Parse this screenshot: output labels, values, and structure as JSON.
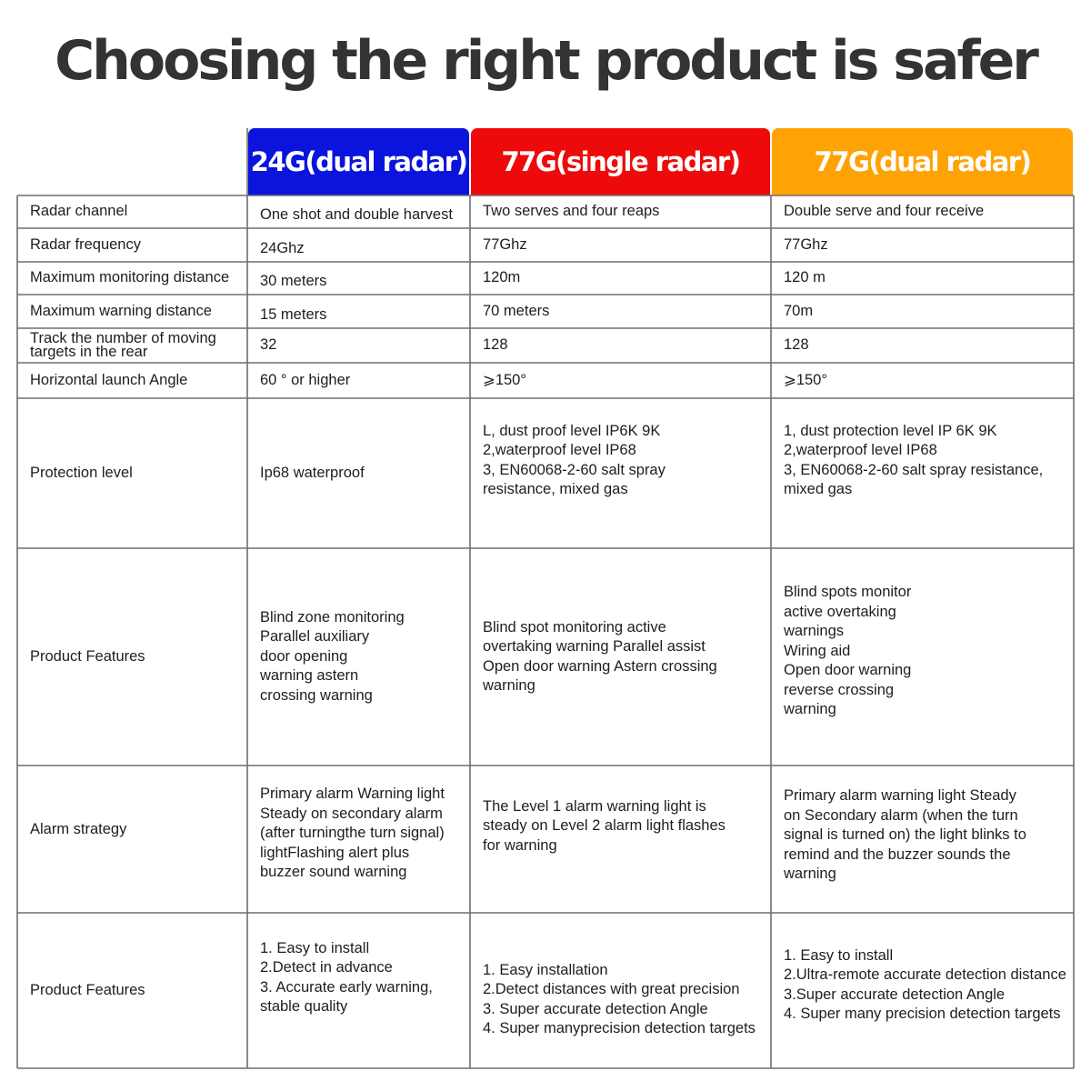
{
  "title": "Choosing the right product is safer",
  "columns": [
    {
      "label": "24G(dual radar)",
      "color": "#0a14dc"
    },
    {
      "label": "77G(single radar)",
      "color": "#ee0a0a"
    },
    {
      "label": "77G(dual radar)",
      "color": "#ffa305"
    }
  ],
  "rows": [
    {
      "label": "Radar channel",
      "values": [
        "One shot and double harvest",
        "Two serves and four reaps",
        "Double serve and four receive"
      ]
    },
    {
      "label": "Radar frequency",
      "values": [
        "24Ghz",
        "77Ghz",
        "77Ghz"
      ]
    },
    {
      "label": "Maximum monitoring distance",
      "values": [
        "30 meters",
        "120m",
        "120 m"
      ]
    },
    {
      "label": "Maximum warning distance",
      "values": [
        "15 meters",
        "70 meters",
        "70m"
      ]
    },
    {
      "label": "Track the number of moving\ntargets in the rear",
      "values": [
        "32",
        "128",
        "128"
      ]
    },
    {
      "label": "Horizontal launch Angle",
      "values": [
        "60 ° or higher",
        "⩾150°",
        "⩾150°"
      ]
    },
    {
      "label": "Protection level",
      "values": [
        "Ip68 waterproof",
        "L, dust proof level IP6K 9K\n2,waterproof level IP68\n3, EN60068-2-60 salt spray\nresistance, mixed gas",
        "1, dust protection level IP 6K 9K\n2,waterproof level IP68\n3, EN60068-2-60 salt spray resistance,\nmixed gas"
      ]
    },
    {
      "label": "Product Features",
      "values": [
        "Blind zone monitoring\nParallel auxiliary\ndoor opening\nwarning astern\ncrossing warning",
        "Blind spot monitoring active\novertaking warning Parallel assist\nOpen door warning Astern crossing\nwarning",
        "Blind spots monitor\nactive overtaking\nwarnings\nWiring aid\nOpen door warning\nreverse crossing\nwarning"
      ]
    },
    {
      "label": "Alarm strategy",
      "values": [
        "Primary alarm Warning light\n Steady on secondary alarm\n(after turningthe turn signal)\n lightFlashing alert plus\nbuzzer  sound warning",
        "The Level 1 alarm warning light is\n steady on Level 2 alarm light flashes\nfor warning",
        "Primary alarm warning light Steady\non Secondary alarm (when the turn\nsignal is turned on) the light blinks to\nremind and the buzzer sounds the\nwarning"
      ]
    },
    {
      "label": "Product Features",
      "values": [
        "1. Easy to install\n2.Detect in advance\n3. Accurate early warning,\nstable quality",
        "1. Easy installation\n2.Detect distances with great precision\n3. Super accurate detection Angle\n4. Super manyprecision detection targets",
        "1. Easy to install\n2.Ultra-remote accurate detection distance\n3.Super accurate detection Angle\n4. Super many precision detection targets"
      ]
    }
  ]
}
